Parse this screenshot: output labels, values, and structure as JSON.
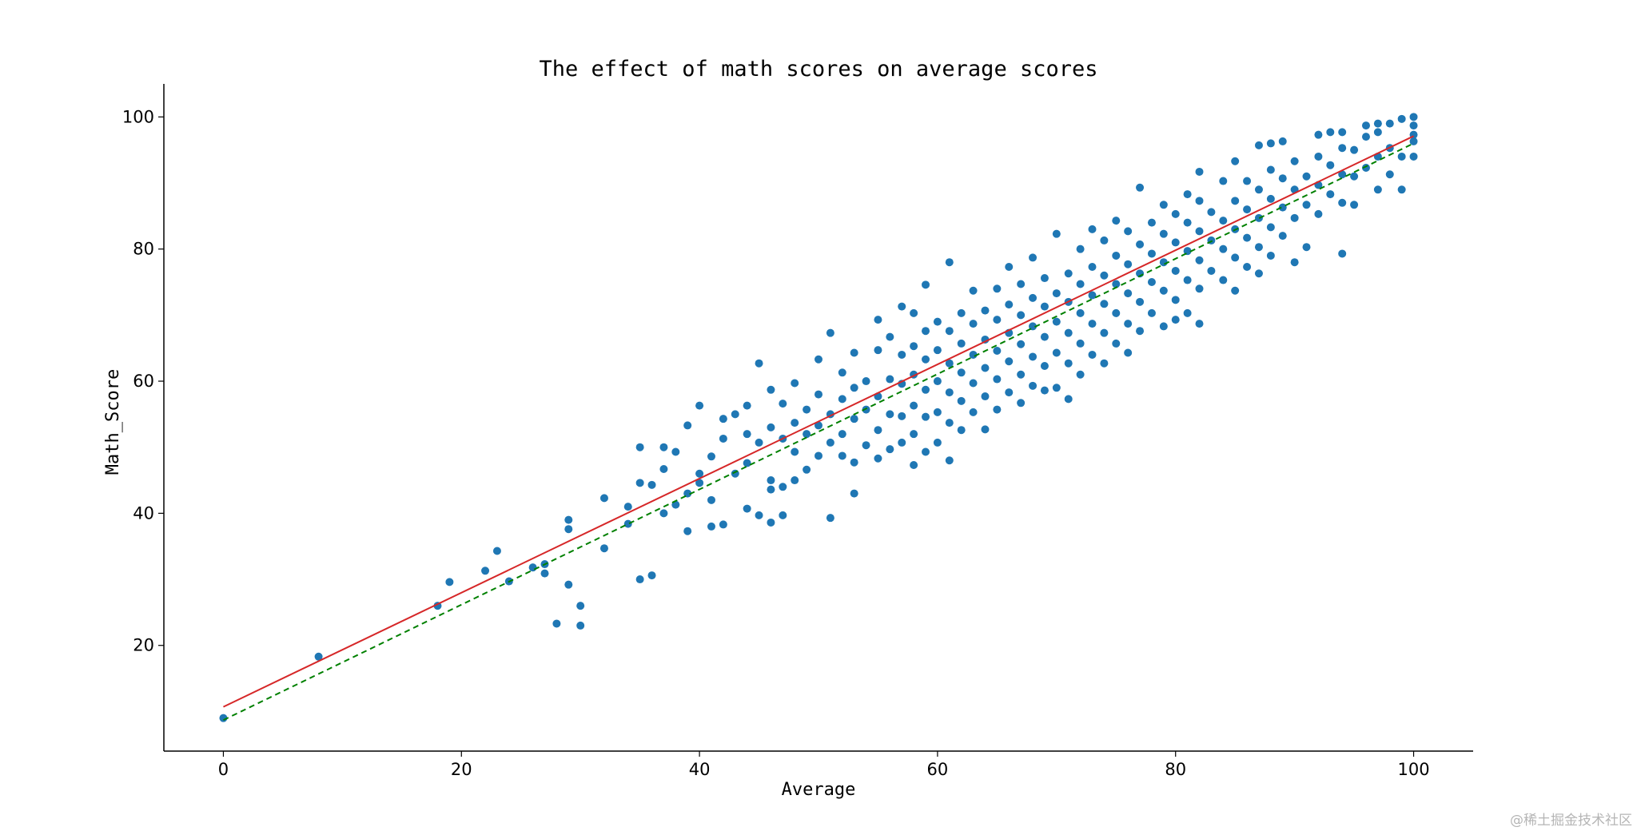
{
  "watermark": "@稀土掘金技术社区",
  "chart_data": {
    "type": "scatter",
    "title": "The effect of math scores on average scores",
    "xlabel": "Average",
    "ylabel": "Math_Score",
    "xlim": [
      -5,
      105
    ],
    "ylim": [
      4,
      105
    ],
    "xticks": [
      0,
      20,
      40,
      60,
      80,
      100
    ],
    "yticks": [
      20,
      40,
      60,
      80,
      100
    ],
    "grid": false,
    "colors": {
      "points": "#1f77b4",
      "fit_line": "#d62728",
      "dashed_line": "#008000",
      "axis": "#000000"
    },
    "lines": [
      {
        "style": "solid",
        "color": "#d62728",
        "x": [
          0,
          100
        ],
        "y": [
          10.7,
          97.1
        ]
      },
      {
        "style": "dashed",
        "color": "#008000",
        "x": [
          0,
          100
        ],
        "y": [
          8.7,
          96.0
        ]
      }
    ],
    "series": [
      {
        "points": [
          [
            0,
            9
          ],
          [
            8,
            18.3
          ],
          [
            18,
            26
          ],
          [
            19,
            29.6
          ],
          [
            22,
            31.3
          ],
          [
            23,
            34.3
          ],
          [
            24,
            29.7
          ],
          [
            26,
            31.8
          ],
          [
            27,
            30.9
          ],
          [
            27,
            32.3
          ],
          [
            28,
            23.3
          ],
          [
            29,
            29.2
          ],
          [
            29,
            37.6
          ],
          [
            29,
            39
          ],
          [
            30,
            23
          ],
          [
            30,
            26
          ],
          [
            32,
            34.7
          ],
          [
            32,
            42.3
          ],
          [
            34,
            38.4
          ],
          [
            34,
            41
          ],
          [
            35,
            44.6
          ],
          [
            35,
            50
          ],
          [
            35,
            30
          ],
          [
            36,
            30.6
          ],
          [
            36,
            44.3
          ],
          [
            37,
            40
          ],
          [
            37,
            46.7
          ],
          [
            37,
            50
          ],
          [
            38,
            41.3
          ],
          [
            38,
            49.3
          ],
          [
            39,
            37.3
          ],
          [
            39,
            43
          ],
          [
            39,
            53.3
          ],
          [
            40,
            44.6
          ],
          [
            40,
            46
          ],
          [
            40,
            56.3
          ],
          [
            41,
            38
          ],
          [
            41,
            42
          ],
          [
            41,
            48.6
          ],
          [
            42,
            38.3
          ],
          [
            42,
            51.3
          ],
          [
            42,
            54.3
          ],
          [
            43,
            46
          ],
          [
            43,
            55
          ],
          [
            44,
            40.7
          ],
          [
            44,
            47.6
          ],
          [
            44,
            52
          ],
          [
            44,
            56.3
          ],
          [
            45,
            39.7
          ],
          [
            45,
            50.7
          ],
          [
            45,
            62.7
          ],
          [
            46,
            38.6
          ],
          [
            46,
            43.6
          ],
          [
            46,
            45
          ],
          [
            46,
            53
          ],
          [
            46,
            58.7
          ],
          [
            47,
            39.7
          ],
          [
            47,
            44
          ],
          [
            47,
            51.3
          ],
          [
            47,
            56.6
          ],
          [
            48,
            45
          ],
          [
            48,
            49.3
          ],
          [
            48,
            53.7
          ],
          [
            48,
            59.7
          ],
          [
            49,
            46.6
          ],
          [
            49,
            52
          ],
          [
            49,
            55.7
          ],
          [
            50,
            48.7
          ],
          [
            50,
            53.3
          ],
          [
            50,
            58
          ],
          [
            50,
            63.3
          ],
          [
            51,
            39.3
          ],
          [
            51,
            50.7
          ],
          [
            51,
            55
          ],
          [
            51,
            67.3
          ],
          [
            52,
            48.7
          ],
          [
            52,
            52
          ],
          [
            52,
            57.3
          ],
          [
            52,
            61.3
          ],
          [
            53,
            43
          ],
          [
            53,
            47.7
          ],
          [
            53,
            54.3
          ],
          [
            53,
            59
          ],
          [
            53,
            64.3
          ],
          [
            54,
            50.3
          ],
          [
            54,
            55.7
          ],
          [
            54,
            60
          ],
          [
            55,
            48.3
          ],
          [
            55,
            52.6
          ],
          [
            55,
            57.7
          ],
          [
            55,
            64.7
          ],
          [
            55,
            69.3
          ],
          [
            56,
            49.7
          ],
          [
            56,
            55
          ],
          [
            56,
            60.3
          ],
          [
            56,
            66.7
          ],
          [
            57,
            50.7
          ],
          [
            57,
            54.7
          ],
          [
            57,
            59.6
          ],
          [
            57,
            64
          ],
          [
            57,
            71.3
          ],
          [
            58,
            47.3
          ],
          [
            58,
            52
          ],
          [
            58,
            56.3
          ],
          [
            58,
            61
          ],
          [
            58,
            65.3
          ],
          [
            58,
            70.3
          ],
          [
            59,
            49.3
          ],
          [
            59,
            54.6
          ],
          [
            59,
            58.7
          ],
          [
            59,
            63.3
          ],
          [
            59,
            67.6
          ],
          [
            59,
            74.6
          ],
          [
            60,
            50.7
          ],
          [
            60,
            55.3
          ],
          [
            60,
            60
          ],
          [
            60,
            64.7
          ],
          [
            60,
            69
          ],
          [
            61,
            48
          ],
          [
            61,
            53.7
          ],
          [
            61,
            58.3
          ],
          [
            61,
            62.7
          ],
          [
            61,
            67.6
          ],
          [
            61,
            78
          ],
          [
            62,
            52.6
          ],
          [
            62,
            57
          ],
          [
            62,
            61.3
          ],
          [
            62,
            65.7
          ],
          [
            62,
            70.3
          ],
          [
            63,
            55.3
          ],
          [
            63,
            59.7
          ],
          [
            63,
            64
          ],
          [
            63,
            68.7
          ],
          [
            63,
            73.7
          ],
          [
            64,
            52.7
          ],
          [
            64,
            57.7
          ],
          [
            64,
            62
          ],
          [
            64,
            66.3
          ],
          [
            64,
            70.7
          ],
          [
            65,
            55.7
          ],
          [
            65,
            60.3
          ],
          [
            65,
            64.6
          ],
          [
            65,
            69.3
          ],
          [
            65,
            74
          ],
          [
            66,
            58.3
          ],
          [
            66,
            63
          ],
          [
            66,
            67.3
          ],
          [
            66,
            71.6
          ],
          [
            66,
            77.3
          ],
          [
            67,
            56.7
          ],
          [
            67,
            61
          ],
          [
            67,
            65.6
          ],
          [
            67,
            70
          ],
          [
            67,
            74.7
          ],
          [
            68,
            59.3
          ],
          [
            68,
            63.7
          ],
          [
            68,
            68.3
          ],
          [
            68,
            72.6
          ],
          [
            68,
            78.7
          ],
          [
            69,
            58.6
          ],
          [
            69,
            62.3
          ],
          [
            69,
            66.7
          ],
          [
            69,
            71.3
          ],
          [
            69,
            75.6
          ],
          [
            70,
            59
          ],
          [
            70,
            64.3
          ],
          [
            70,
            69
          ],
          [
            70,
            73.3
          ],
          [
            70,
            82.3
          ],
          [
            71,
            57.3
          ],
          [
            71,
            62.7
          ],
          [
            71,
            67.3
          ],
          [
            71,
            72
          ],
          [
            71,
            76.3
          ],
          [
            72,
            61
          ],
          [
            72,
            65.7
          ],
          [
            72,
            70.3
          ],
          [
            72,
            74.7
          ],
          [
            72,
            80
          ],
          [
            73,
            64
          ],
          [
            73,
            68.7
          ],
          [
            73,
            73
          ],
          [
            73,
            77.3
          ],
          [
            73,
            83
          ],
          [
            74,
            62.7
          ],
          [
            74,
            67.3
          ],
          [
            74,
            71.7
          ],
          [
            74,
            76
          ],
          [
            74,
            81.3
          ],
          [
            75,
            65.7
          ],
          [
            75,
            70.3
          ],
          [
            75,
            74.7
          ],
          [
            75,
            79
          ],
          [
            75,
            84.3
          ],
          [
            76,
            64.3
          ],
          [
            76,
            68.7
          ],
          [
            76,
            73.3
          ],
          [
            76,
            77.7
          ],
          [
            76,
            82.7
          ],
          [
            77,
            67.6
          ],
          [
            77,
            72
          ],
          [
            77,
            76.3
          ],
          [
            77,
            80.7
          ],
          [
            77,
            89.3
          ],
          [
            78,
            70.3
          ],
          [
            78,
            75
          ],
          [
            78,
            79.3
          ],
          [
            78,
            84
          ],
          [
            79,
            68.3
          ],
          [
            79,
            73.7
          ],
          [
            79,
            78
          ],
          [
            79,
            82.3
          ],
          [
            79,
            86.7
          ],
          [
            80,
            69.3
          ],
          [
            80,
            72.3
          ],
          [
            80,
            76.7
          ],
          [
            80,
            81
          ],
          [
            80,
            85.3
          ],
          [
            81,
            70.3
          ],
          [
            81,
            75.3
          ],
          [
            81,
            79.7
          ],
          [
            81,
            84
          ],
          [
            81,
            88.3
          ],
          [
            82,
            68.7
          ],
          [
            82,
            74
          ],
          [
            82,
            78.3
          ],
          [
            82,
            82.7
          ],
          [
            82,
            87.3
          ],
          [
            82,
            91.7
          ],
          [
            83,
            76.7
          ],
          [
            83,
            81.3
          ],
          [
            83,
            85.6
          ],
          [
            84,
            75.3
          ],
          [
            84,
            80
          ],
          [
            84,
            84.3
          ],
          [
            84,
            90.3
          ],
          [
            85,
            73.7
          ],
          [
            85,
            78.7
          ],
          [
            85,
            83
          ],
          [
            85,
            87.3
          ],
          [
            85,
            93.3
          ],
          [
            86,
            77.3
          ],
          [
            86,
            81.7
          ],
          [
            86,
            86
          ],
          [
            86,
            90.3
          ],
          [
            87,
            76.3
          ],
          [
            87,
            80.3
          ],
          [
            87,
            84.7
          ],
          [
            87,
            89
          ],
          [
            87,
            95.7
          ],
          [
            88,
            79
          ],
          [
            88,
            83.3
          ],
          [
            88,
            87.6
          ],
          [
            88,
            92
          ],
          [
            88,
            96
          ],
          [
            89,
            82
          ],
          [
            89,
            86.3
          ],
          [
            89,
            90.7
          ],
          [
            89,
            96.3
          ],
          [
            90,
            78
          ],
          [
            90,
            84.7
          ],
          [
            90,
            89
          ],
          [
            90,
            93.3
          ],
          [
            91,
            80.3
          ],
          [
            91,
            86.7
          ],
          [
            91,
            91
          ],
          [
            92,
            85.3
          ],
          [
            92,
            89.7
          ],
          [
            92,
            94
          ],
          [
            92,
            97.3
          ],
          [
            93,
            88.3
          ],
          [
            93,
            92.7
          ],
          [
            93,
            97.7
          ],
          [
            94,
            79.3
          ],
          [
            94,
            87
          ],
          [
            94,
            91.3
          ],
          [
            94,
            95.3
          ],
          [
            94,
            97.7
          ],
          [
            95,
            86.7
          ],
          [
            95,
            91
          ],
          [
            95,
            95
          ],
          [
            96,
            92.3
          ],
          [
            96,
            97
          ],
          [
            96,
            98.7
          ],
          [
            97,
            89
          ],
          [
            97,
            94
          ],
          [
            97,
            97.7
          ],
          [
            97,
            99
          ],
          [
            98,
            91.3
          ],
          [
            98,
            95.3
          ],
          [
            98,
            99
          ],
          [
            99,
            89
          ],
          [
            99,
            94
          ],
          [
            99,
            99.7
          ],
          [
            100,
            94
          ],
          [
            100,
            96.3
          ],
          [
            100,
            97.3
          ],
          [
            100,
            98.7
          ],
          [
            100,
            100
          ]
        ]
      }
    ]
  }
}
